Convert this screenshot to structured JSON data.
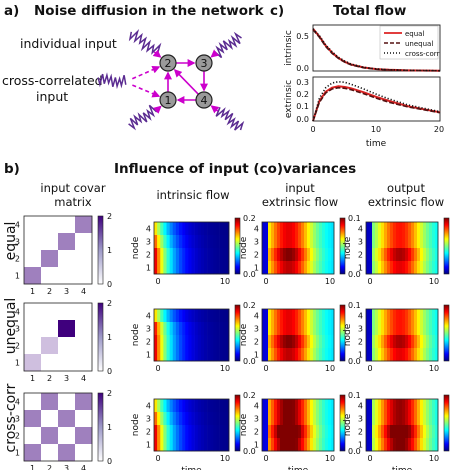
{
  "panel_a": {
    "letter": "a)",
    "title": "Noise diffusion in the network",
    "individual_input": "individual input",
    "cross_line1": "cross-correlated",
    "cross_line2": "input",
    "nodes": [
      "1",
      "2",
      "3",
      "4"
    ],
    "colors": {
      "edge": "#cc00cc",
      "node_fill": "#9a9a9a",
      "noise": "#5b2c91"
    }
  },
  "panel_c": {
    "letter": "c)",
    "title": "Total flow",
    "legend": [
      "equal",
      "unequal",
      "cross-corr"
    ],
    "top_ylabel": "intrinsic",
    "bottom_ylabel": "extrinsic",
    "xlabel": "time",
    "top_yticks": [
      "0.5",
      "0.0"
    ],
    "bottom_yticks": [
      "0.3",
      "0.2",
      "0.1",
      "0.0"
    ],
    "xticks": [
      "0",
      "10",
      "20"
    ]
  },
  "panel_b": {
    "letter": "b)",
    "title": "Influence of input (co)variances",
    "col_headers": [
      [
        "input covar",
        "matrix"
      ],
      [
        "intrinsic flow"
      ],
      [
        "input",
        "extrinsic flow"
      ],
      [
        "output",
        "extrinsic flow"
      ]
    ],
    "row_labels": [
      "equal",
      "unequal",
      "cross-corr"
    ],
    "node_label": "node",
    "time_label": "time",
    "node_ticks": [
      "4",
      "3",
      "2",
      "1"
    ],
    "matrix_xticks": [
      "1",
      "2",
      "3",
      "4"
    ],
    "heat_xticks": [
      "0",
      "10"
    ],
    "cbar_matrix": [
      "2",
      "1",
      "0"
    ],
    "cbar_intrinsic": [
      "0.2",
      "0.0"
    ],
    "cbar_extrinsic": [
      "0.1",
      "0.0"
    ]
  },
  "chart_data": [
    {
      "type": "line",
      "title": "Total flow",
      "ylabel": "intrinsic",
      "xlabel": "",
      "xlim": [
        0,
        20
      ],
      "ylim": [
        0,
        0.6
      ],
      "x": [
        0,
        1,
        2,
        3,
        4,
        5,
        6,
        8,
        10,
        12,
        15,
        20
      ],
      "series": [
        {
          "name": "equal",
          "color": "#dd2222",
          "style": "solid",
          "values": [
            0.55,
            0.45,
            0.33,
            0.24,
            0.17,
            0.12,
            0.085,
            0.045,
            0.025,
            0.015,
            0.008,
            0.003
          ]
        },
        {
          "name": "unequal",
          "color": "#551111",
          "style": "dashed",
          "values": [
            0.54,
            0.44,
            0.32,
            0.23,
            0.165,
            0.115,
            0.08,
            0.042,
            0.023,
            0.014,
            0.007,
            0.003
          ]
        },
        {
          "name": "cross-corr",
          "color": "#111111",
          "style": "dotted",
          "values": [
            0.55,
            0.46,
            0.34,
            0.25,
            0.18,
            0.13,
            0.09,
            0.048,
            0.027,
            0.016,
            0.009,
            0.004
          ]
        }
      ]
    },
    {
      "type": "line",
      "title": "",
      "ylabel": "extrinsic",
      "xlabel": "time",
      "xlim": [
        0,
        20
      ],
      "ylim": [
        0,
        0.33
      ],
      "x": [
        0,
        1,
        2,
        3,
        4,
        5,
        6,
        8,
        10,
        12,
        15,
        20
      ],
      "series": [
        {
          "name": "equal",
          "color": "#dd2222",
          "style": "solid",
          "values": [
            0.0,
            0.15,
            0.22,
            0.25,
            0.26,
            0.255,
            0.245,
            0.215,
            0.18,
            0.15,
            0.11,
            0.065
          ]
        },
        {
          "name": "unequal",
          "color": "#551111",
          "style": "dashed",
          "values": [
            0.0,
            0.14,
            0.21,
            0.24,
            0.25,
            0.245,
            0.235,
            0.205,
            0.17,
            0.14,
            0.105,
            0.062
          ]
        },
        {
          "name": "cross-corr",
          "color": "#111111",
          "style": "dotted",
          "values": [
            0.0,
            0.17,
            0.25,
            0.285,
            0.295,
            0.29,
            0.275,
            0.24,
            0.2,
            0.165,
            0.12,
            0.07
          ]
        }
      ]
    }
  ],
  "matrices": {
    "equal": [
      [
        1,
        0,
        0,
        0
      ],
      [
        0,
        1,
        0,
        0
      ],
      [
        0,
        0,
        1,
        0
      ],
      [
        0,
        0,
        0,
        1
      ]
    ],
    "unequal": [
      [
        0.5,
        0,
        0,
        0
      ],
      [
        0,
        0.5,
        0,
        0
      ],
      [
        0,
        0,
        2,
        0
      ],
      [
        0,
        0,
        0,
        0
      ]
    ],
    "cross-corr": [
      [
        1,
        0,
        1,
        0
      ],
      [
        0,
        1,
        0,
        1
      ],
      [
        1,
        0,
        1,
        0
      ],
      [
        0,
        1,
        0,
        1
      ]
    ]
  }
}
